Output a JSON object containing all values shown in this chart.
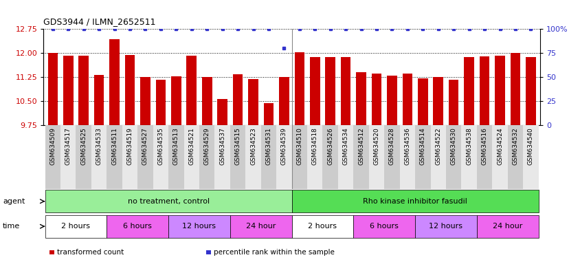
{
  "title": "GDS3944 / ILMN_2652511",
  "samples": [
    "GSM634509",
    "GSM634517",
    "GSM634525",
    "GSM634533",
    "GSM634511",
    "GSM634519",
    "GSM634527",
    "GSM634535",
    "GSM634513",
    "GSM634521",
    "GSM634529",
    "GSM634537",
    "GSM634515",
    "GSM634523",
    "GSM634531",
    "GSM634539",
    "GSM634510",
    "GSM634518",
    "GSM634526",
    "GSM634534",
    "GSM634512",
    "GSM634520",
    "GSM634528",
    "GSM634536",
    "GSM634514",
    "GSM634522",
    "GSM634530",
    "GSM634538",
    "GSM634516",
    "GSM634524",
    "GSM634532",
    "GSM634540"
  ],
  "bar_values": [
    12.0,
    11.93,
    11.91,
    11.32,
    12.44,
    11.95,
    11.26,
    11.18,
    11.28,
    11.93,
    11.25,
    10.58,
    11.35,
    11.2,
    10.45,
    11.25,
    12.02,
    11.88,
    11.87,
    11.88,
    11.4,
    11.37,
    11.3,
    11.37,
    11.22,
    11.25,
    11.18,
    11.87,
    11.9,
    11.92,
    12.01,
    11.88
  ],
  "percentile_values": [
    100,
    100,
    100,
    100,
    100,
    100,
    100,
    100,
    100,
    100,
    100,
    100,
    100,
    100,
    100,
    80,
    100,
    100,
    100,
    100,
    100,
    100,
    100,
    100,
    100,
    100,
    100,
    100,
    100,
    100,
    100,
    100
  ],
  "bar_color": "#cc0000",
  "percentile_color": "#3333cc",
  "ylim_left": [
    9.75,
    12.75
  ],
  "yticks_left": [
    9.75,
    10.5,
    11.25,
    12.0,
    12.75
  ],
  "ylim_right": [
    0,
    100
  ],
  "yticks_right": [
    0,
    25,
    50,
    75,
    100
  ],
  "agent_groups": [
    {
      "label": "no treatment, control",
      "start": 0,
      "end": 16,
      "color": "#99ee99"
    },
    {
      "label": "Rho kinase inhibitor fasudil",
      "start": 16,
      "end": 32,
      "color": "#55dd55"
    }
  ],
  "time_groups": [
    {
      "label": "2 hours",
      "start": 0,
      "end": 4,
      "color": "#ffffff"
    },
    {
      "label": "6 hours",
      "start": 4,
      "end": 8,
      "color": "#ee66ee"
    },
    {
      "label": "12 hours",
      "start": 8,
      "end": 12,
      "color": "#cc88ff"
    },
    {
      "label": "24 hour",
      "start": 12,
      "end": 16,
      "color": "#ee66ee"
    },
    {
      "label": "2 hours",
      "start": 16,
      "end": 20,
      "color": "#ffffff"
    },
    {
      "label": "6 hours",
      "start": 20,
      "end": 24,
      "color": "#ee66ee"
    },
    {
      "label": "12 hours",
      "start": 24,
      "end": 28,
      "color": "#cc88ff"
    },
    {
      "label": "24 hour",
      "start": 28,
      "end": 32,
      "color": "#ee66ee"
    }
  ],
  "agent_label": "agent",
  "time_label": "time",
  "legend_items": [
    {
      "color": "#cc0000",
      "label": "transformed count"
    },
    {
      "color": "#3333cc",
      "label": "percentile rank within the sample"
    }
  ],
  "xtick_bg": "#d8d8d8",
  "plot_bg": "#ffffff"
}
